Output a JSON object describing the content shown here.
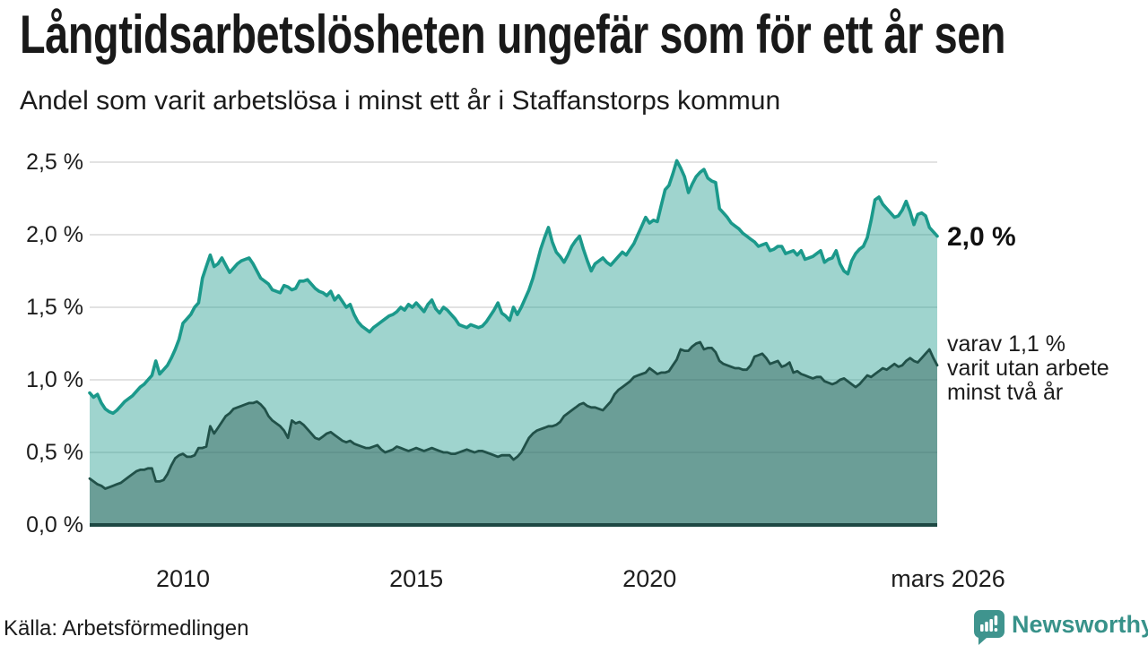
{
  "header": {
    "title": "Långtidsarbetslösheten ungefär som för ett år sen",
    "subtitle": "Andel som varit arbetslösa i minst ett år i Staffanstorps kommun"
  },
  "annotations": {
    "last_value_label": "2,0 %",
    "note_line1": "varav 1,1 %",
    "note_line2": "varit utan arbete",
    "note_line3": "minst två år"
  },
  "footer": {
    "source": "Källa: Arbetsförmedlingen",
    "brand": "Newsworthy"
  },
  "colors": {
    "series1_line": "#1b998b",
    "series1_fill": "rgba(27,153,139,0.42)",
    "series2_line": "#215149",
    "series2_fill": "rgba(30,77,70,0.40)",
    "gridline": "#d9d9d9",
    "baseline": "#1d4843",
    "text": "#1b1b1b",
    "brand_teal": "#38928a"
  },
  "chart_data": {
    "type": "area",
    "title": "Långtidsarbetslösheten ungefär som för ett år sen",
    "subtitle": "Andel som varit arbetslösa i minst ett år i Staffanstorps kommun",
    "x_start": "2008-01",
    "x_end": "2026-03",
    "x_frequency": "monthly",
    "ylim": [
      0,
      2.5
    ],
    "grid": true,
    "yticks": {
      "values": [
        0,
        0.5,
        1.0,
        1.5,
        2.0,
        2.5
      ],
      "labels": [
        "0,0 %",
        "0,5 %",
        "1,0 %",
        "1,5 %",
        "2,0 %",
        "2,5 %"
      ]
    },
    "xticks": {
      "month_indices": [
        24,
        84,
        144,
        218
      ],
      "labels": [
        "2010",
        "2015",
        "2020",
        "mars 2026"
      ]
    },
    "series": [
      {
        "name": "Andel arbetslösa minst ett år",
        "end_label": "2,0 %",
        "values": [
          0.91,
          0.88,
          0.9,
          0.84,
          0.8,
          0.78,
          0.77,
          0.79,
          0.82,
          0.85,
          0.87,
          0.89,
          0.92,
          0.95,
          0.97,
          1.0,
          1.03,
          1.13,
          1.04,
          1.07,
          1.1,
          1.15,
          1.21,
          1.28,
          1.39,
          1.42,
          1.45,
          1.5,
          1.53,
          1.7,
          1.78,
          1.86,
          1.78,
          1.8,
          1.84,
          1.79,
          1.74,
          1.77,
          1.8,
          1.82,
          1.83,
          1.84,
          1.8,
          1.75,
          1.7,
          1.68,
          1.66,
          1.62,
          1.61,
          1.6,
          1.65,
          1.64,
          1.62,
          1.63,
          1.68,
          1.68,
          1.69,
          1.66,
          1.63,
          1.61,
          1.6,
          1.58,
          1.61,
          1.55,
          1.58,
          1.54,
          1.5,
          1.52,
          1.45,
          1.4,
          1.37,
          1.35,
          1.33,
          1.36,
          1.38,
          1.4,
          1.42,
          1.44,
          1.45,
          1.47,
          1.5,
          1.48,
          1.52,
          1.5,
          1.53,
          1.5,
          1.47,
          1.52,
          1.55,
          1.49,
          1.46,
          1.5,
          1.48,
          1.45,
          1.42,
          1.38,
          1.37,
          1.36,
          1.38,
          1.37,
          1.36,
          1.37,
          1.4,
          1.44,
          1.48,
          1.53,
          1.46,
          1.44,
          1.41,
          1.5,
          1.45,
          1.5,
          1.56,
          1.62,
          1.7,
          1.8,
          1.9,
          1.98,
          2.05,
          1.95,
          1.88,
          1.85,
          1.81,
          1.86,
          1.92,
          1.96,
          1.99,
          1.9,
          1.82,
          1.75,
          1.8,
          1.82,
          1.84,
          1.81,
          1.79,
          1.82,
          1.85,
          1.88,
          1.86,
          1.9,
          1.94,
          2.0,
          2.06,
          2.12,
          2.08,
          2.1,
          2.09,
          2.2,
          2.31,
          2.34,
          2.42,
          2.51,
          2.46,
          2.4,
          2.29,
          2.35,
          2.4,
          2.43,
          2.45,
          2.39,
          2.37,
          2.36,
          2.18,
          2.15,
          2.12,
          2.08,
          2.06,
          2.04,
          2.01,
          1.99,
          1.97,
          1.95,
          1.92,
          1.93,
          1.94,
          1.89,
          1.9,
          1.92,
          1.92,
          1.87,
          1.88,
          1.89,
          1.86,
          1.89,
          1.83,
          1.84,
          1.85,
          1.87,
          1.89,
          1.81,
          1.83,
          1.84,
          1.89,
          1.8,
          1.75,
          1.73,
          1.82,
          1.87,
          1.9,
          1.92,
          1.98,
          2.1,
          2.24,
          2.26,
          2.21,
          2.18,
          2.15,
          2.12,
          2.13,
          2.17,
          2.23,
          2.16,
          2.07,
          2.14,
          2.15,
          2.13,
          2.05,
          2.02,
          1.99
        ]
      },
      {
        "name": "varav utan arbete minst två år",
        "end_label": "varav 1,1 % varit utan arbete minst två år",
        "values": [
          0.32,
          0.3,
          0.28,
          0.27,
          0.25,
          0.26,
          0.27,
          0.28,
          0.29,
          0.31,
          0.33,
          0.35,
          0.37,
          0.38,
          0.38,
          0.39,
          0.39,
          0.3,
          0.3,
          0.31,
          0.35,
          0.41,
          0.46,
          0.48,
          0.49,
          0.47,
          0.47,
          0.48,
          0.53,
          0.53,
          0.54,
          0.68,
          0.63,
          0.67,
          0.71,
          0.75,
          0.77,
          0.8,
          0.81,
          0.82,
          0.83,
          0.84,
          0.84,
          0.85,
          0.83,
          0.8,
          0.75,
          0.72,
          0.7,
          0.68,
          0.65,
          0.6,
          0.72,
          0.7,
          0.71,
          0.69,
          0.66,
          0.63,
          0.6,
          0.59,
          0.61,
          0.63,
          0.64,
          0.62,
          0.6,
          0.58,
          0.57,
          0.58,
          0.56,
          0.55,
          0.54,
          0.53,
          0.53,
          0.54,
          0.55,
          0.52,
          0.5,
          0.51,
          0.52,
          0.54,
          0.53,
          0.52,
          0.51,
          0.52,
          0.53,
          0.52,
          0.51,
          0.52,
          0.53,
          0.52,
          0.51,
          0.5,
          0.5,
          0.49,
          0.49,
          0.5,
          0.51,
          0.52,
          0.51,
          0.5,
          0.51,
          0.51,
          0.5,
          0.49,
          0.48,
          0.47,
          0.48,
          0.48,
          0.48,
          0.45,
          0.47,
          0.5,
          0.55,
          0.6,
          0.63,
          0.65,
          0.66,
          0.67,
          0.68,
          0.68,
          0.69,
          0.71,
          0.75,
          0.77,
          0.79,
          0.81,
          0.83,
          0.84,
          0.82,
          0.81,
          0.81,
          0.8,
          0.79,
          0.82,
          0.85,
          0.9,
          0.93,
          0.95,
          0.97,
          0.99,
          1.02,
          1.03,
          1.04,
          1.05,
          1.08,
          1.06,
          1.04,
          1.05,
          1.05,
          1.06,
          1.1,
          1.14,
          1.21,
          1.2,
          1.2,
          1.23,
          1.25,
          1.26,
          1.21,
          1.22,
          1.22,
          1.19,
          1.13,
          1.11,
          1.1,
          1.09,
          1.08,
          1.08,
          1.07,
          1.07,
          1.1,
          1.16,
          1.17,
          1.18,
          1.15,
          1.11,
          1.12,
          1.13,
          1.09,
          1.1,
          1.12,
          1.05,
          1.06,
          1.04,
          1.03,
          1.02,
          1.01,
          1.02,
          1.02,
          0.99,
          0.98,
          0.97,
          0.98,
          1.0,
          1.01,
          0.99,
          0.97,
          0.95,
          0.97,
          1.0,
          1.03,
          1.02,
          1.04,
          1.06,
          1.08,
          1.07,
          1.09,
          1.11,
          1.09,
          1.1,
          1.13,
          1.15,
          1.13,
          1.12,
          1.15,
          1.18,
          1.21,
          1.15,
          1.1
        ]
      }
    ]
  }
}
